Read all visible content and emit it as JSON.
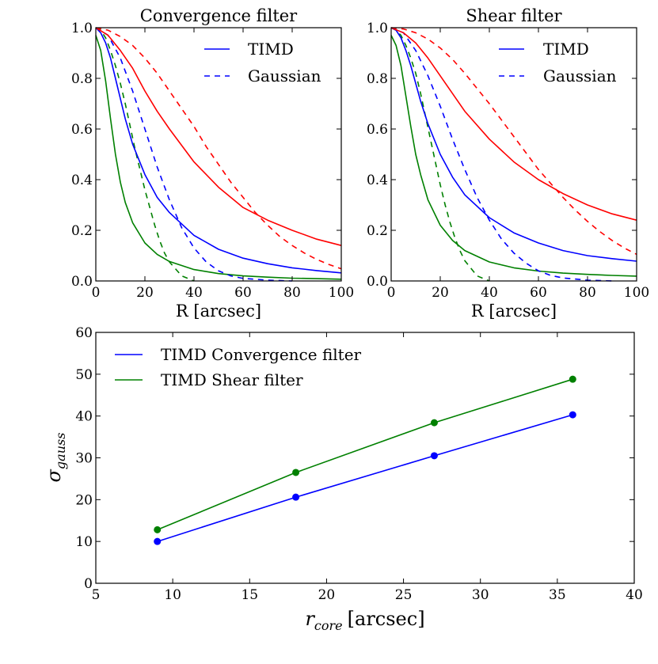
{
  "chart_data": [
    {
      "type": "line",
      "title": "Convergence filter",
      "xlabel": "R [arcsec]",
      "ylabel": "",
      "xlim": [
        0,
        100
      ],
      "ylim": [
        0,
        1.0
      ],
      "xticks": [
        "0",
        "20",
        "40",
        "60",
        "80",
        "100"
      ],
      "yticks": [
        "0.0",
        "0.2",
        "0.4",
        "0.6",
        "0.8",
        "1.0"
      ],
      "legend": [
        {
          "label": "TIMD",
          "style": "solid"
        },
        {
          "label": "Gaussian",
          "style": "dashed"
        }
      ],
      "colors": {
        "blue": "#0000ff",
        "green": "#008000",
        "red": "#ff0000"
      },
      "series": [
        {
          "name": "TIMD green",
          "color": "#008000",
          "style": "solid",
          "x": [
            0,
            2,
            4,
            6,
            8,
            10,
            12,
            15,
            20,
            25,
            30,
            40,
            50,
            60,
            70,
            80,
            90,
            100
          ],
          "y": [
            0.97,
            0.91,
            0.79,
            0.64,
            0.5,
            0.39,
            0.31,
            0.23,
            0.15,
            0.105,
            0.077,
            0.045,
            0.029,
            0.02,
            0.015,
            0.011,
            0.009,
            0.007
          ]
        },
        {
          "name": "Gaussian green",
          "color": "#008000",
          "style": "dashed",
          "x": [
            0,
            2,
            4,
            6,
            8,
            10,
            12,
            14,
            16,
            18,
            20,
            22,
            24,
            26,
            28,
            30,
            35,
            40
          ],
          "y": [
            1.0,
            0.99,
            0.96,
            0.91,
            0.85,
            0.78,
            0.7,
            0.61,
            0.52,
            0.44,
            0.36,
            0.29,
            0.22,
            0.16,
            0.11,
            0.075,
            0.02,
            0.0
          ]
        },
        {
          "name": "TIMD blue",
          "color": "#0000ff",
          "style": "solid",
          "x": [
            0,
            2,
            4,
            6,
            8,
            10,
            12,
            15,
            20,
            25,
            30,
            40,
            50,
            60,
            70,
            80,
            90,
            100
          ],
          "y": [
            1.0,
            0.98,
            0.94,
            0.88,
            0.8,
            0.72,
            0.64,
            0.54,
            0.42,
            0.33,
            0.27,
            0.18,
            0.125,
            0.09,
            0.068,
            0.052,
            0.041,
            0.032
          ]
        },
        {
          "name": "Gaussian blue",
          "color": "#0000ff",
          "style": "dashed",
          "x": [
            0,
            5,
            10,
            15,
            20,
            25,
            30,
            35,
            40,
            45,
            50,
            55,
            60,
            70,
            80
          ],
          "y": [
            1.0,
            0.97,
            0.88,
            0.75,
            0.6,
            0.45,
            0.32,
            0.21,
            0.13,
            0.075,
            0.04,
            0.02,
            0.01,
            0.003,
            0.0
          ]
        },
        {
          "name": "TIMD red",
          "color": "#ff0000",
          "style": "solid",
          "x": [
            0,
            5,
            10,
            15,
            20,
            25,
            30,
            40,
            50,
            60,
            70,
            80,
            90,
            100
          ],
          "y": [
            1.0,
            0.97,
            0.91,
            0.84,
            0.75,
            0.67,
            0.6,
            0.47,
            0.37,
            0.29,
            0.24,
            0.2,
            0.165,
            0.14
          ]
        },
        {
          "name": "Gaussian red",
          "color": "#ff0000",
          "style": "dashed",
          "x": [
            0,
            5,
            10,
            15,
            20,
            25,
            30,
            35,
            40,
            45,
            50,
            55,
            60,
            65,
            70,
            75,
            80,
            85,
            90,
            95,
            100
          ],
          "y": [
            1.0,
            0.99,
            0.965,
            0.93,
            0.88,
            0.82,
            0.75,
            0.68,
            0.61,
            0.53,
            0.46,
            0.39,
            0.33,
            0.27,
            0.22,
            0.175,
            0.14,
            0.11,
            0.085,
            0.065,
            0.048
          ]
        }
      ]
    },
    {
      "type": "line",
      "title": "Shear filter",
      "xlabel": "R [arcsec]",
      "ylabel": "",
      "xlim": [
        0,
        100
      ],
      "ylim": [
        0,
        1.0
      ],
      "xticks": [
        "0",
        "20",
        "40",
        "60",
        "80",
        "100"
      ],
      "yticks": [
        "0.0",
        "0.2",
        "0.4",
        "0.6",
        "0.8",
        "1.0"
      ],
      "legend": [
        {
          "label": "TIMD",
          "style": "solid"
        },
        {
          "label": "Gaussian",
          "style": "dashed"
        }
      ],
      "series": [
        {
          "name": "TIMD green",
          "color": "#008000",
          "style": "solid",
          "x": [
            0,
            2,
            4,
            6,
            8,
            10,
            12,
            15,
            20,
            25,
            30,
            40,
            50,
            60,
            70,
            80,
            90,
            100
          ],
          "y": [
            0.97,
            0.93,
            0.85,
            0.73,
            0.61,
            0.5,
            0.42,
            0.32,
            0.22,
            0.16,
            0.12,
            0.075,
            0.052,
            0.039,
            0.031,
            0.026,
            0.022,
            0.019
          ]
        },
        {
          "name": "Gaussian green",
          "color": "#008000",
          "style": "dashed",
          "x": [
            0,
            2,
            4,
            6,
            8,
            10,
            12,
            14,
            16,
            18,
            20,
            22,
            24,
            26,
            28,
            30,
            35,
            40
          ],
          "y": [
            1.0,
            0.99,
            0.97,
            0.93,
            0.88,
            0.82,
            0.74,
            0.65,
            0.56,
            0.47,
            0.38,
            0.3,
            0.23,
            0.17,
            0.12,
            0.08,
            0.02,
            0.0
          ]
        },
        {
          "name": "TIMD blue",
          "color": "#0000ff",
          "style": "solid",
          "x": [
            0,
            2,
            4,
            6,
            8,
            10,
            12,
            15,
            20,
            25,
            30,
            40,
            50,
            60,
            70,
            80,
            90,
            100
          ],
          "y": [
            1.0,
            0.99,
            0.96,
            0.91,
            0.85,
            0.78,
            0.71,
            0.62,
            0.5,
            0.41,
            0.34,
            0.25,
            0.19,
            0.15,
            0.12,
            0.1,
            0.088,
            0.078
          ]
        },
        {
          "name": "Gaussian blue",
          "color": "#0000ff",
          "style": "dashed",
          "x": [
            0,
            5,
            10,
            15,
            20,
            25,
            30,
            35,
            40,
            45,
            50,
            55,
            60,
            65,
            70,
            80,
            90
          ],
          "y": [
            1.0,
            0.98,
            0.91,
            0.81,
            0.69,
            0.56,
            0.44,
            0.33,
            0.24,
            0.165,
            0.11,
            0.07,
            0.04,
            0.022,
            0.012,
            0.003,
            0.0
          ]
        },
        {
          "name": "TIMD red",
          "color": "#ff0000",
          "style": "solid",
          "x": [
            0,
            5,
            10,
            15,
            20,
            25,
            30,
            40,
            50,
            60,
            70,
            80,
            90,
            100
          ],
          "y": [
            1.0,
            0.98,
            0.94,
            0.88,
            0.81,
            0.74,
            0.67,
            0.56,
            0.47,
            0.4,
            0.345,
            0.3,
            0.265,
            0.24
          ]
        },
        {
          "name": "Gaussian red",
          "color": "#ff0000",
          "style": "dashed",
          "x": [
            0,
            5,
            10,
            15,
            20,
            25,
            30,
            35,
            40,
            45,
            50,
            55,
            60,
            65,
            70,
            75,
            80,
            85,
            90,
            95,
            100
          ],
          "y": [
            1.0,
            0.995,
            0.98,
            0.955,
            0.92,
            0.875,
            0.82,
            0.76,
            0.7,
            0.635,
            0.57,
            0.505,
            0.44,
            0.385,
            0.33,
            0.28,
            0.235,
            0.195,
            0.16,
            0.13,
            0.105
          ]
        }
      ]
    },
    {
      "type": "line",
      "title": "",
      "xlabel": "r_core [arcsec]",
      "xlabel_parts": {
        "var": "r",
        "sub": "core",
        "unit": "[arcsec]"
      },
      "ylabel": "σ_gauss",
      "ylabel_parts": {
        "var": "σ",
        "sub": "gauss"
      },
      "xlim": [
        5,
        40
      ],
      "ylim": [
        0,
        60
      ],
      "xticks": [
        "5",
        "10",
        "15",
        "20",
        "25",
        "30",
        "35",
        "40"
      ],
      "yticks": [
        "0",
        "10",
        "20",
        "30",
        "40",
        "50",
        "60"
      ],
      "legend": [
        {
          "label": "TIMD Convergence filter",
          "color": "#0000ff"
        },
        {
          "label": "TIMD Shear filter",
          "color": "#008000"
        }
      ],
      "series": [
        {
          "name": "TIMD Convergence filter",
          "color": "#0000ff",
          "style": "solid",
          "markers": true,
          "x": [
            9,
            18,
            27,
            36
          ],
          "y": [
            10.0,
            20.6,
            30.5,
            40.3
          ]
        },
        {
          "name": "TIMD Shear filter",
          "color": "#008000",
          "style": "solid",
          "markers": true,
          "x": [
            9,
            18,
            27,
            36
          ],
          "y": [
            12.8,
            26.5,
            38.4,
            48.8
          ]
        }
      ]
    }
  ]
}
